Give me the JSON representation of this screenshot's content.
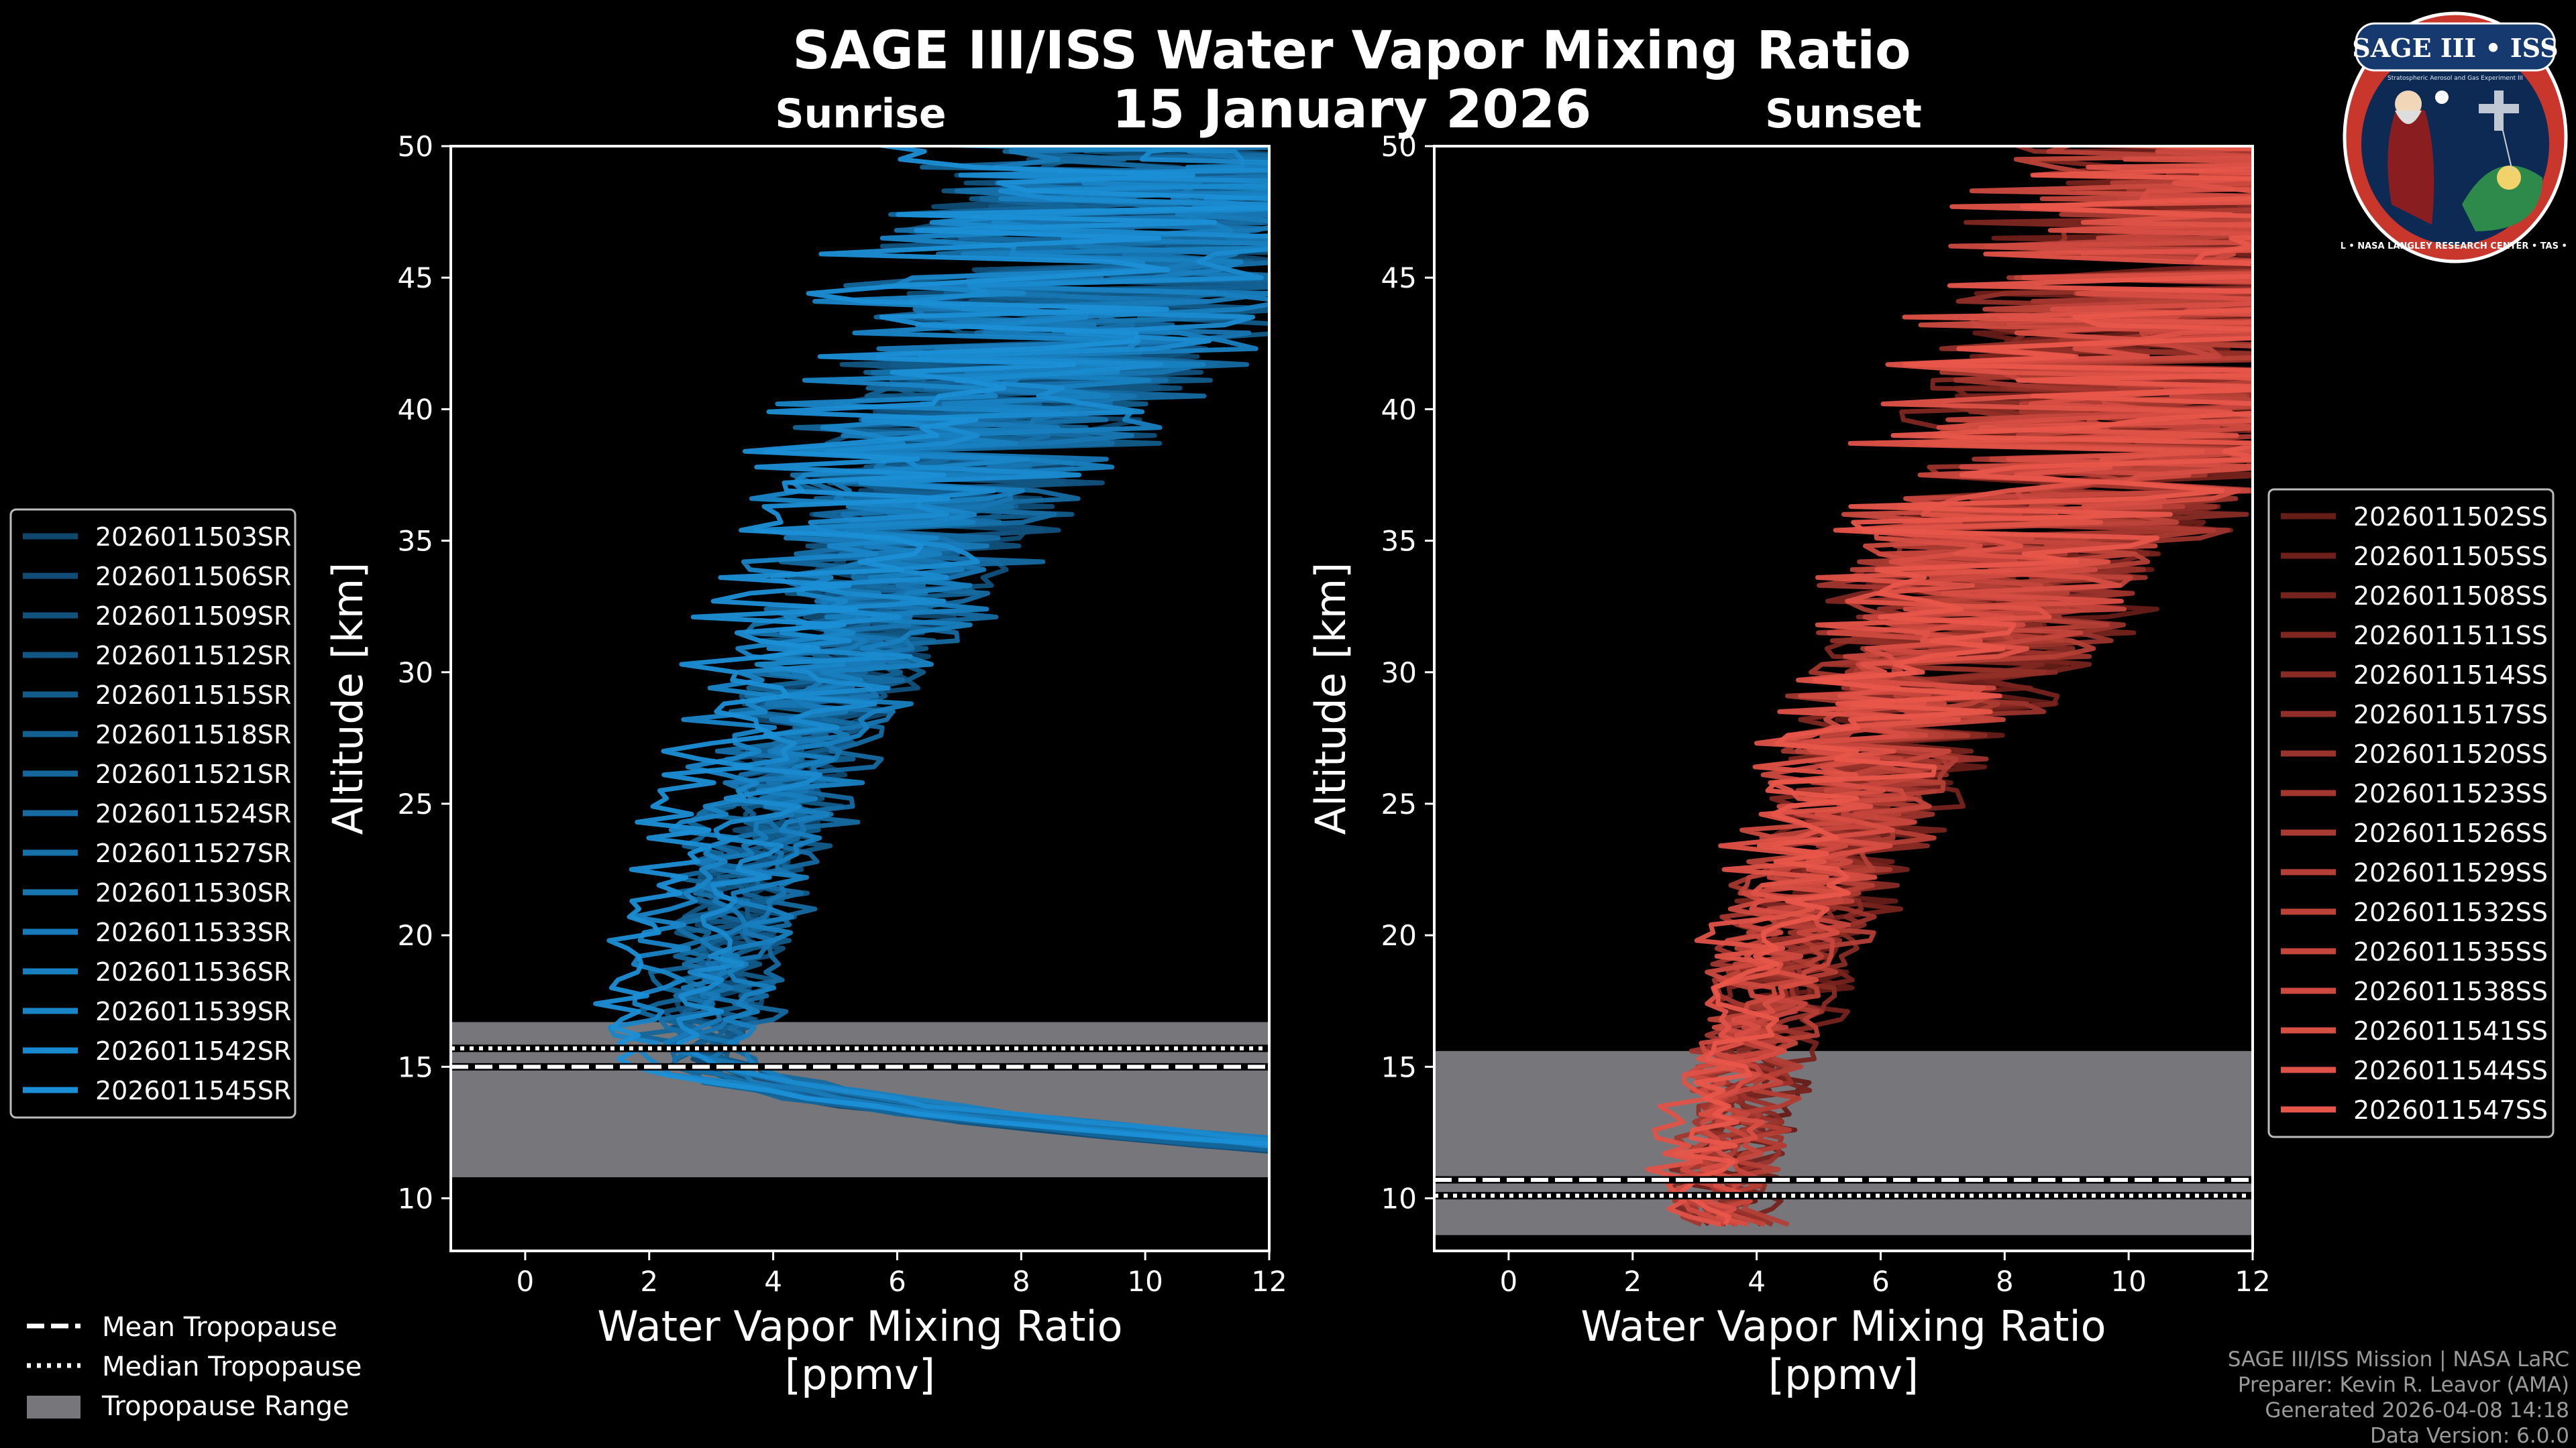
{
  "title": "SAGE III/ISS Water Vapor Mixing Ratio",
  "date": "15 January 2026",
  "logo": {
    "name": "SAGE III • ISS",
    "subtitle": "Stratospheric Aerosol and Gas Experiment III",
    "ring": "BALL • NASA LANGLEY RESEARCH CENTER • TAS • ESA"
  },
  "colors": {
    "sunrise": "#1b8fd6",
    "sunset": "#e8564a",
    "tropo": "#77777b",
    "axis": "#ffffff"
  },
  "chart_data": [
    {
      "type": "line",
      "panel": "sunrise",
      "title": "Sunrise",
      "xlabel": "Water Vapor Mixing Ratio",
      "xunit": "[ppmv]",
      "ylabel": "Altitude [km]",
      "xlim": [
        -1.2,
        12
      ],
      "ylim": [
        8,
        50
      ],
      "xticks": [
        0,
        2,
        4,
        6,
        8,
        10,
        12
      ],
      "yticks": [
        10,
        15,
        20,
        25,
        30,
        35,
        40,
        45,
        50
      ],
      "tropopause": {
        "mean": 15.0,
        "median": 15.7,
        "range": [
          10.8,
          16.7
        ]
      },
      "series": [
        {
          "name": "2026011503SR",
          "min_ratio": 3.0
        },
        {
          "name": "2026011506SR",
          "min_ratio": 2.7
        },
        {
          "name": "2026011509SR",
          "min_ratio": 3.2
        },
        {
          "name": "2026011512SR",
          "min_ratio": 2.5
        },
        {
          "name": "2026011515SR",
          "min_ratio": 3.4
        },
        {
          "name": "2026011518SR",
          "min_ratio": 2.9
        },
        {
          "name": "2026011521SR",
          "min_ratio": 2.2
        },
        {
          "name": "2026011524SR",
          "min_ratio": 3.6
        },
        {
          "name": "2026011527SR",
          "min_ratio": 2.4
        },
        {
          "name": "2026011530SR",
          "min_ratio": 3.1
        },
        {
          "name": "2026011533SR",
          "min_ratio": 2.6
        },
        {
          "name": "2026011536SR",
          "min_ratio": 3.3
        },
        {
          "name": "2026011539SR",
          "min_ratio": 1.8
        },
        {
          "name": "2026011542SR",
          "min_ratio": 2.8
        },
        {
          "name": "2026011545SR",
          "min_ratio": 1.5
        }
      ]
    },
    {
      "type": "line",
      "panel": "sunset",
      "title": "Sunset",
      "xlabel": "Water Vapor Mixing Ratio",
      "xunit": "[ppmv]",
      "ylabel": "Altitude [km]",
      "xlim": [
        -1.2,
        12
      ],
      "ylim": [
        8,
        50
      ],
      "xticks": [
        0,
        2,
        4,
        6,
        8,
        10,
        12
      ],
      "yticks": [
        10,
        15,
        20,
        25,
        30,
        35,
        40,
        45,
        50
      ],
      "tropopause": {
        "mean": 10.7,
        "median": 10.1,
        "range": [
          8.6,
          15.6
        ]
      },
      "series": [
        {
          "name": "2026011502SS",
          "min_ratio": 3.8
        },
        {
          "name": "2026011505SS",
          "min_ratio": 3.3
        },
        {
          "name": "2026011508SS",
          "min_ratio": 3.9
        },
        {
          "name": "2026011511SS",
          "min_ratio": 3.0
        },
        {
          "name": "2026011514SS",
          "min_ratio": 3.6
        },
        {
          "name": "2026011517SS",
          "min_ratio": 3.2
        },
        {
          "name": "2026011520SS",
          "min_ratio": 3.7
        },
        {
          "name": "2026011523SS",
          "min_ratio": 2.9
        },
        {
          "name": "2026011526SS",
          "min_ratio": 3.4
        },
        {
          "name": "2026011529SS",
          "min_ratio": 3.8
        },
        {
          "name": "2026011532SS",
          "min_ratio": 3.1
        },
        {
          "name": "2026011535SS",
          "min_ratio": 3.5
        },
        {
          "name": "2026011538SS",
          "min_ratio": 2.8
        },
        {
          "name": "2026011541SS",
          "min_ratio": 3.3
        },
        {
          "name": "2026011544SS",
          "min_ratio": 2.6
        },
        {
          "name": "2026011547SS",
          "min_ratio": 3.0
        }
      ]
    }
  ],
  "tropo_legend": {
    "mean": "Mean Tropopause",
    "median": "Median Tropopause",
    "range": "Tropopause Range"
  },
  "credits": [
    "SAGE III/ISS Mission | NASA LaRC",
    "Preparer: Kevin R. Leavor (AMA)",
    "Generated 2026-04-08 14:18",
    "Data Version: 6.0.0"
  ]
}
